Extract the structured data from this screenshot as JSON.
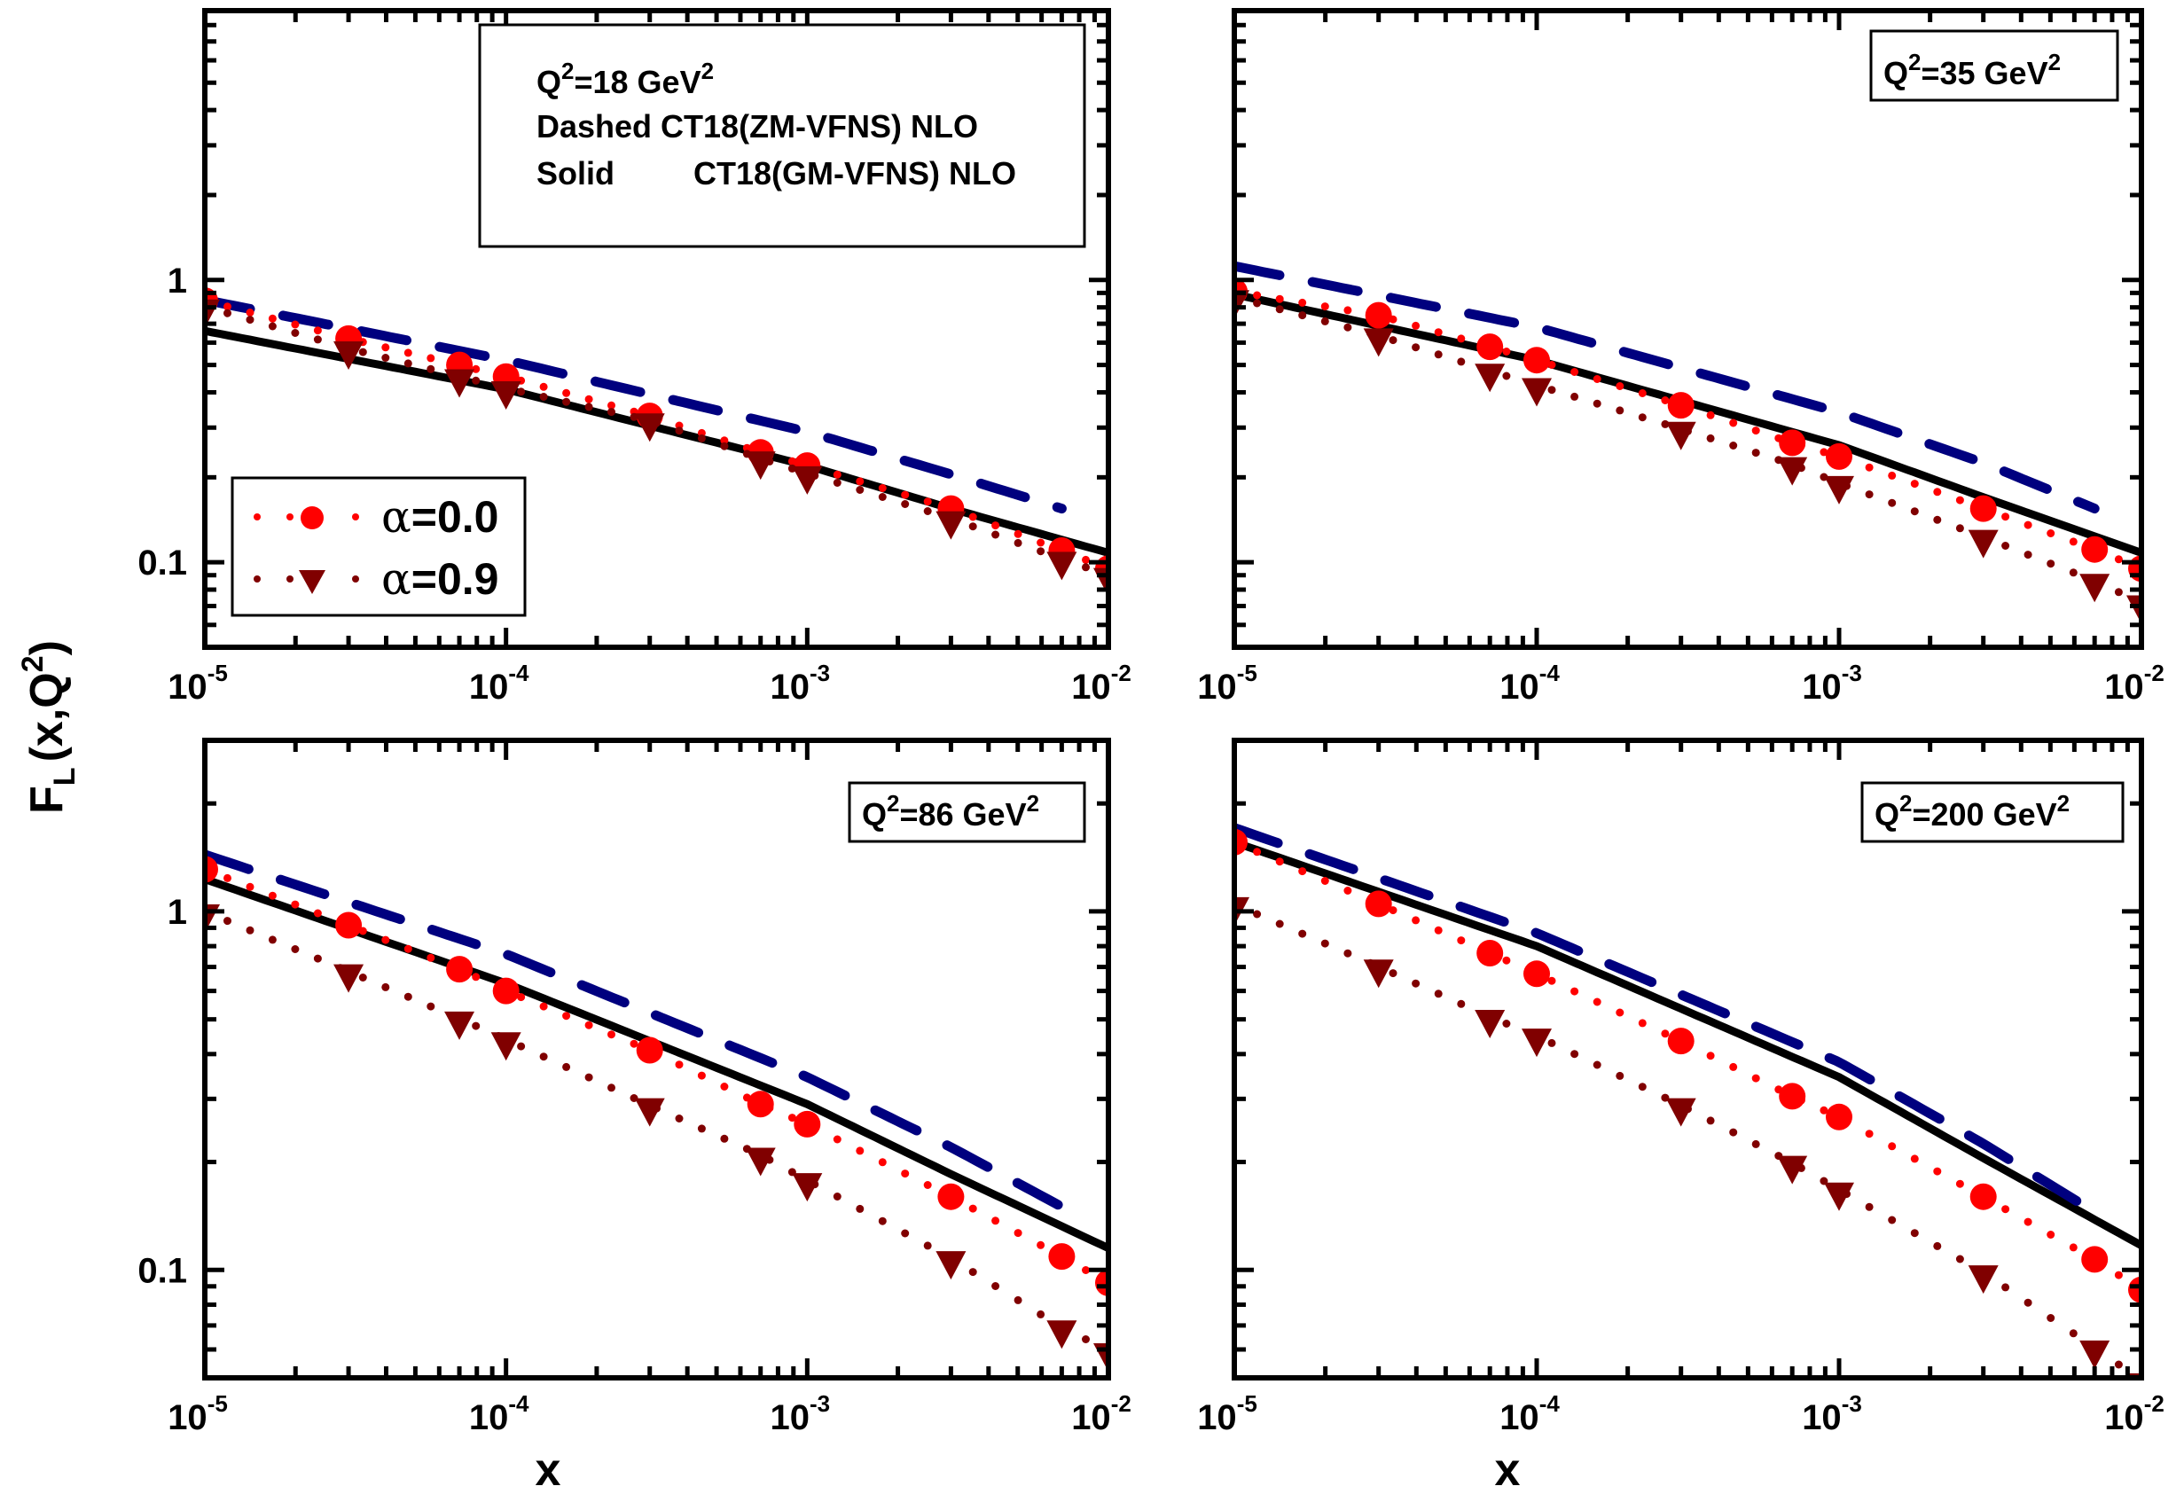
{
  "chart_data": {
    "type": "line",
    "ylabel_main": "F",
    "ylabel_sub": "L",
    "ylabel_rest": "(x,Q",
    "ylabel_sup": "2",
    "ylabel_end": ")",
    "xlabel": "x",
    "xscale": "log",
    "yscale": "log",
    "xlim": [
      1e-05,
      0.01
    ],
    "x_tick_labels": [
      {
        "base": "10",
        "exp": "-5",
        "value": 1e-05
      },
      {
        "base": "10",
        "exp": "-4",
        "value": 0.0001
      },
      {
        "base": "10",
        "exp": "-3",
        "value": 0.001
      },
      {
        "base": "10",
        "exp": "-2",
        "value": 0.01
      }
    ],
    "info_box": {
      "line1": "Q",
      "line1_sup": "2",
      "line1_rest": "=18 GeV",
      "line1_sup2": "2",
      "line2": "Dashed CT18(ZM-VFNS) NLO",
      "line3_a": "Solid",
      "line3_b": "CT18(GM-VFNS) NLO"
    },
    "legend": {
      "location": "lower-left of top-left panel",
      "entries": [
        {
          "label_alpha": "α",
          "label": "=0.0",
          "marker": "circle",
          "color": "#ff0000"
        },
        {
          "label_alpha": "α",
          "label": "=0.9",
          "marker": "triangle-down",
          "color": "#800000"
        }
      ]
    },
    "colors": {
      "solid": "#000000",
      "dashed": "#00007f",
      "alpha0": "#ff0000",
      "alpha09": "#800000"
    },
    "x_points": [
      1e-05,
      3e-05,
      7e-05,
      0.0001,
      0.0003,
      0.0007,
      0.001,
      0.003,
      0.007,
      0.01
    ],
    "panels": [
      {
        "id": "q18",
        "label_pre": "Q",
        "label_sup": "2",
        "label_mid": "=18 GeV",
        "label_sup2": "2",
        "show_label_box": false,
        "ylim": [
          0.05,
          9
        ],
        "y_tick_labels": [
          "1",
          "0.1"
        ],
        "y_tick_values": [
          1,
          0.1
        ],
        "series": [
          {
            "name": "CT18(GM-VFNS) NLO",
            "style": "solid",
            "x": [
              1e-05,
              0.0001,
              0.001,
              0.003,
              0.01
            ],
            "y": [
              0.66,
              0.41,
              0.22,
              0.155,
              0.108
            ]
          },
          {
            "name": "CT18(ZM-VFNS) NLO",
            "style": "dashed",
            "x": [
              1e-05,
              0.0001,
              0.001,
              0.003,
              0.007
            ],
            "y": [
              0.85,
              0.52,
              0.29,
              0.205,
              0.155
            ]
          },
          {
            "name": "α=0.0",
            "style": "dotted-circle",
            "y": [
              0.845,
              0.62,
              0.5,
              0.455,
              0.33,
              0.245,
              0.22,
              0.155,
              0.11,
              0.095
            ]
          },
          {
            "name": "α=0.9",
            "style": "dotted-triangle",
            "y": [
              0.76,
              0.54,
              0.43,
              0.39,
              0.3,
              0.22,
              0.195,
              0.135,
              0.097,
              0.085
            ]
          }
        ]
      },
      {
        "id": "q35",
        "label_pre": "Q",
        "label_sup": "2",
        "label_mid": "=35 GeV",
        "label_sup2": "2",
        "show_label_box": true,
        "ylim": [
          0.05,
          9
        ],
        "y_tick_labels": [
          "1",
          "0.1"
        ],
        "y_tick_values": [
          1,
          0.1
        ],
        "series": [
          {
            "name": "CT18(GM-VFNS) NLO",
            "style": "solid",
            "x": [
              1e-05,
              0.0001,
              0.001,
              0.003,
              0.01
            ],
            "y": [
              0.89,
              0.52,
              0.26,
              0.17,
              0.108
            ]
          },
          {
            "name": "CT18(ZM-VFNS) NLO",
            "style": "dashed",
            "x": [
              1e-05,
              0.0001,
              0.001,
              0.003,
              0.007
            ],
            "y": [
              1.12,
              0.68,
              0.34,
              0.225,
              0.155
            ]
          },
          {
            "name": "α=0.0",
            "style": "dotted-circle",
            "y": [
              0.91,
              0.75,
              0.58,
              0.52,
              0.36,
              0.265,
              0.237,
              0.155,
              0.111,
              0.095
            ]
          },
          {
            "name": "α=0.9",
            "style": "dotted-triangle",
            "y": [
              0.82,
              0.6,
              0.45,
              0.4,
              0.28,
              0.21,
              0.18,
              0.116,
              0.081,
              0.068
            ]
          }
        ]
      },
      {
        "id": "q86",
        "label_pre": "Q",
        "label_sup": "2",
        "label_mid": "=86 GeV",
        "label_sup2": "2",
        "show_label_box": true,
        "ylim": [
          0.05,
          3
        ],
        "y_tick_labels": [
          "1",
          "0.1"
        ],
        "y_tick_values": [
          1,
          0.1
        ],
        "series": [
          {
            "name": "CT18(GM-VFNS) NLO",
            "style": "solid",
            "x": [
              1e-05,
              0.0001,
              0.001,
              0.003,
              0.01
            ],
            "y": [
              1.23,
              0.63,
              0.29,
              0.185,
              0.115
            ]
          },
          {
            "name": "CT18(ZM-VFNS) NLO",
            "style": "dashed",
            "x": [
              1e-05,
              0.0001,
              0.001,
              0.003,
              0.007
            ],
            "y": [
              1.44,
              0.76,
              0.345,
              0.22,
              0.15
            ]
          },
          {
            "name": "α=0.0",
            "style": "dotted-circle",
            "y": [
              1.31,
              0.915,
              0.69,
              0.6,
              0.41,
              0.29,
              0.255,
              0.16,
              0.109,
              0.092
            ]
          },
          {
            "name": "α=0.9",
            "style": "dotted-triangle",
            "y": [
              0.955,
              0.65,
              0.48,
              0.42,
              0.275,
              0.2,
              0.17,
              0.103,
              0.066,
              0.057
            ]
          }
        ]
      },
      {
        "id": "q200",
        "label_pre": "Q",
        "label_sup": "2",
        "label_mid": "=200 GeV",
        "label_sup2": "2",
        "show_label_box": true,
        "ylim": [
          0.05,
          3
        ],
        "y_tick_labels": [
          "1",
          "0.1"
        ],
        "y_tick_values": [
          1,
          0.1
        ],
        "series": [
          {
            "name": "CT18(GM-VFNS) NLO",
            "style": "solid",
            "x": [
              1e-05,
              0.0001,
              0.001,
              0.003,
              0.01
            ],
            "y": [
              1.56,
              0.8,
              0.345,
              0.205,
              0.117
            ]
          },
          {
            "name": "CT18(ZM-VFNS) NLO",
            "style": "dashed",
            "x": [
              1e-05,
              0.0001,
              0.001,
              0.003,
              0.007
            ],
            "y": [
              1.71,
              0.87,
              0.38,
              0.225,
              0.145
            ]
          },
          {
            "name": "α=0.0",
            "style": "dotted-circle",
            "y": [
              1.56,
              1.05,
              0.765,
              0.67,
              0.435,
              0.305,
              0.267,
              0.16,
              0.107,
              0.088
            ]
          },
          {
            "name": "α=0.9",
            "style": "dotted-triangle",
            "y": [
              1.0,
              0.67,
              0.485,
              0.43,
              0.275,
              0.19,
              0.16,
              0.094,
              0.058,
              0.047
            ]
          }
        ]
      }
    ]
  }
}
